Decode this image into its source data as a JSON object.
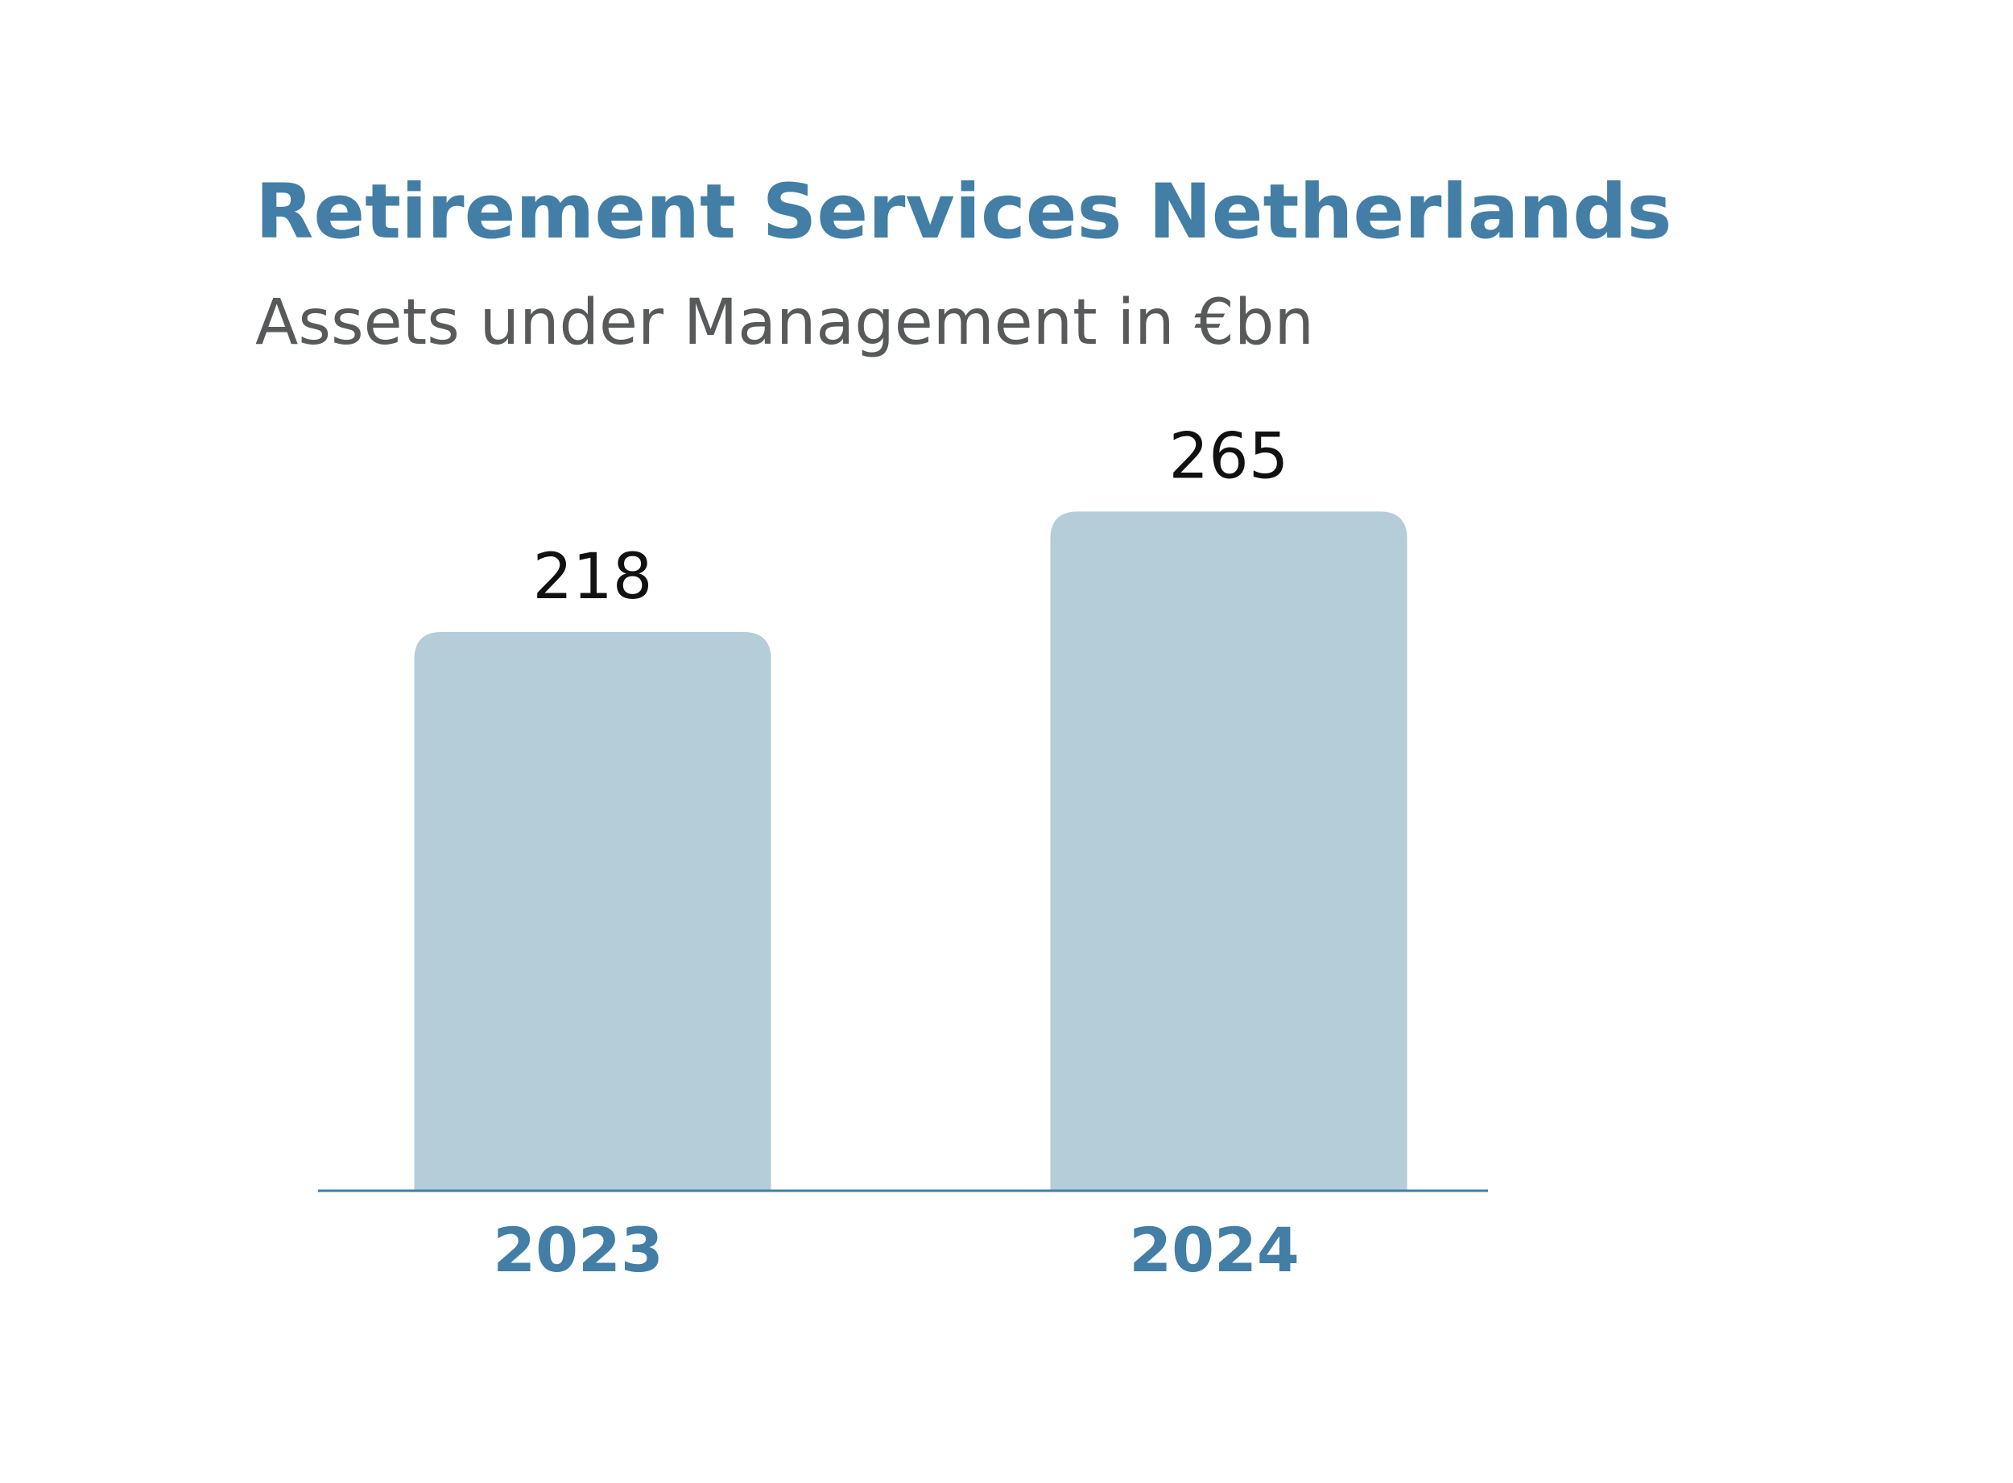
{
  "chart_data": {
    "type": "bar",
    "title": "Retirement Services Netherlands",
    "subtitle": "Assets under Management in €bn",
    "categories": [
      "2023",
      "2024"
    ],
    "values": [
      218,
      265
    ],
    "color": "#b5ccd9",
    "axis_color": "#427ea5",
    "ylim": [
      0,
      300
    ]
  }
}
